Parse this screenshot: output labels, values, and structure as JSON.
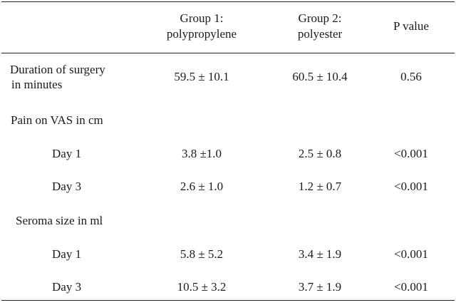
{
  "header": {
    "group1_line1": "Group 1:",
    "group1_line2": "polypropylene",
    "group2_line1": "Group 2:",
    "group2_line2": "polyester",
    "pvalue": "P value"
  },
  "rows": {
    "duration": {
      "label_line1": "Duration of surgery",
      "label_line2": "in minutes",
      "g1": "59.5 ± 10.1",
      "g2": "60.5 ± 10.4",
      "p": "0.56"
    },
    "pain_header": "Pain on VAS in cm",
    "pain_day1": {
      "label": "Day 1",
      "g1": "3.8 ±1.0",
      "g2": "2.5 ± 0.8",
      "p": "<0.001"
    },
    "pain_day3": {
      "label": "Day 3",
      "g1": "2.6 ± 1.0",
      "g2": "1.2 ± 0.7",
      "p": "<0.001"
    },
    "seroma_header": "Seroma size in ml",
    "seroma_day1": {
      "label": "Day 1",
      "g1": "5.8 ± 5.2",
      "g2": "3.4 ± 1.9",
      "p": "<0.001"
    },
    "seroma_day3": {
      "label": "Day 3",
      "g1": "10.5 ± 3.2",
      "g2": "3.7 ± 1.9",
      "p": "<0.001"
    }
  }
}
